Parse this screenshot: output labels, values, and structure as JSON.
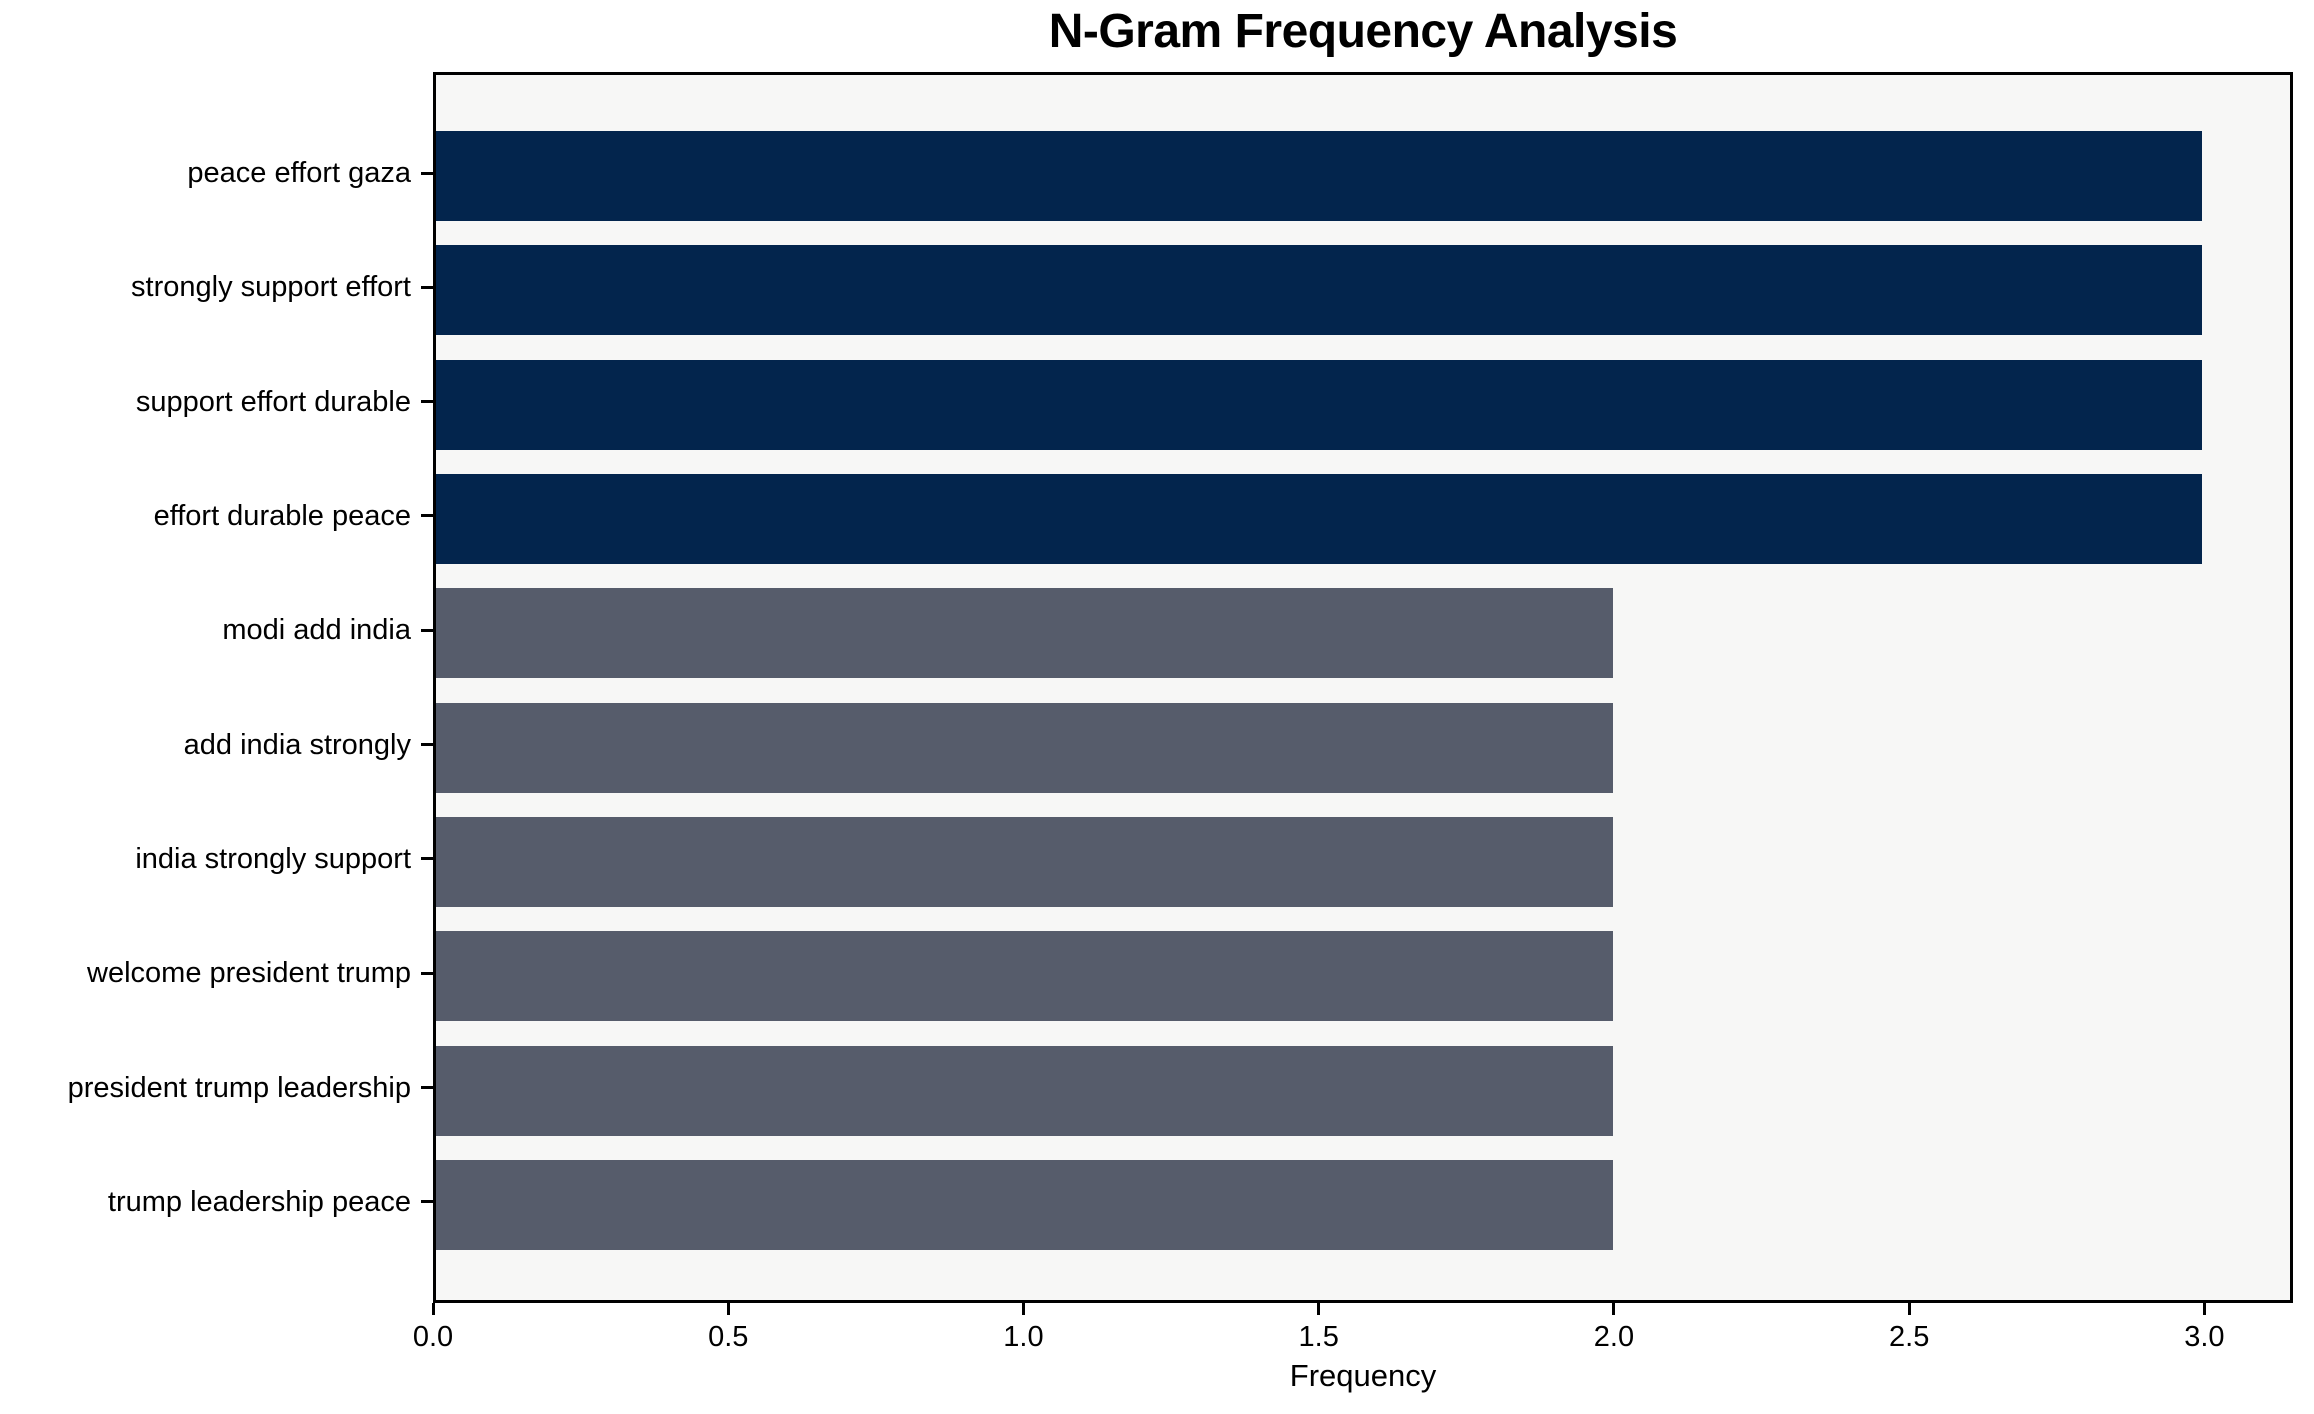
{
  "chart_data": {
    "type": "bar",
    "orientation": "horizontal",
    "title": "N-Gram Frequency Analysis",
    "xlabel": "Frequency",
    "ylabel": "",
    "categories": [
      "peace effort gaza",
      "strongly support effort",
      "support effort durable",
      "effort durable peace",
      "modi add india",
      "add india strongly",
      "india strongly support",
      "welcome president trump",
      "president trump leadership",
      "trump leadership peace"
    ],
    "values": [
      3,
      3,
      3,
      3,
      2,
      2,
      2,
      2,
      2,
      2
    ],
    "bar_colors": [
      "#03254d",
      "#03254d",
      "#03254d",
      "#03254d",
      "#565c6b",
      "#565c6b",
      "#565c6b",
      "#565c6b",
      "#565c6b",
      "#565c6b"
    ],
    "xlim": [
      0,
      3.15
    ],
    "xticks": [
      0.0,
      0.5,
      1.0,
      1.5,
      2.0,
      2.5,
      3.0
    ],
    "xtick_labels": [
      "0.0",
      "0.5",
      "1.0",
      "1.5",
      "2.0",
      "2.5",
      "3.0"
    ],
    "colors": {
      "high_frequency_bar": "#03254d",
      "low_frequency_bar": "#565c6b",
      "plot_background": "#f7f7f6",
      "figure_background": "#ffffff",
      "axis": "#000000"
    },
    "grid": false,
    "legend": null
  }
}
